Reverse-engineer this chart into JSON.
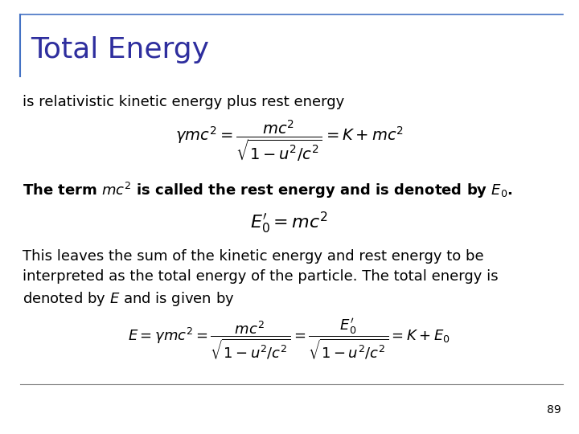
{
  "title": "Total Energy",
  "title_color": "#2E2E9E",
  "title_fontsize": 26,
  "background_color": "#ffffff",
  "border_color": "#4472C4",
  "text1": "is relativistic kinetic energy plus rest energy",
  "eq1": "$\\gamma mc^2 = \\dfrac{mc^2}{\\sqrt{1-u^2/c^2}} = K + mc^2$",
  "text2": "The term ",
  "text2_mc2": "$mc^2$",
  "text2_rest": " is called the rest energy and is denoted by ",
  "text2_E0": "$\\boldsymbol{E_0}$",
  "text2_dot": ".",
  "eq2": "$E_0^{\\prime} = mc^2$",
  "text3": "This leaves the sum of the kinetic energy and rest energy to be\ninterpreted as the total energy of the particle. The total energy is\ndenoted by $E$ and is given by",
  "eq3": "$E = \\gamma mc^2 = \\dfrac{mc^2}{\\sqrt{1-u^2/c^2}} = \\dfrac{E_0^{\\prime}}{\\sqrt{1-u^2/c^2}} = K + E_0$",
  "page_number": "89",
  "body_fontsize": 13,
  "bold_fontsize": 13,
  "eq_fontsize": 14
}
